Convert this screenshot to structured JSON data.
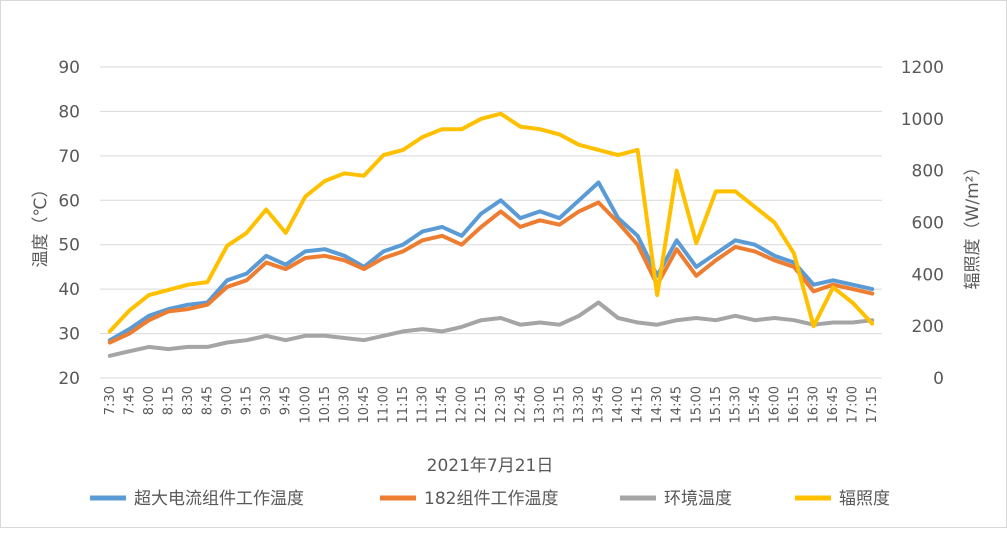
{
  "chart_data": {
    "type": "line",
    "xlabel": "2021年7月21日",
    "ylabel": "温度（℃）",
    "y2label": "辐照度（W/m²）",
    "ylim": [
      20,
      90
    ],
    "y2lim": [
      0,
      1200
    ],
    "yticks": [
      "20",
      "30",
      "40",
      "50",
      "60",
      "70",
      "80",
      "90"
    ],
    "y2ticks": [
      "0",
      "200",
      "400",
      "600",
      "800",
      "1000",
      "1200"
    ],
    "grid": true,
    "legend_position": "bottom",
    "categories": [
      "7:30",
      "7:45",
      "8:00",
      "8:15",
      "8:30",
      "8:45",
      "9:00",
      "9:15",
      "9:30",
      "9:45",
      "10:00",
      "10:15",
      "10:30",
      "10:45",
      "11:00",
      "11:15",
      "11:30",
      "11:45",
      "12:00",
      "12:15",
      "12:30",
      "12:45",
      "13:00",
      "13:15",
      "13:30",
      "13:45",
      "14:00",
      "14:15",
      "14:30",
      "14:45",
      "15:00",
      "15:15",
      "15:30",
      "15:45",
      "16:00",
      "16:15",
      "16:30",
      "16:45",
      "17:00",
      "17:15"
    ],
    "series": [
      {
        "name": "超大电流组件工作温度",
        "color": "#5B9BD5",
        "axis": "left",
        "values": [
          28.5,
          31,
          34,
          35.5,
          36.5,
          37,
          42,
          43.5,
          47.5,
          45.5,
          48.5,
          49,
          47.5,
          45,
          48.5,
          50,
          53,
          54,
          52,
          57,
          60,
          56,
          57.5,
          56,
          60,
          64,
          56,
          52,
          43,
          51,
          45,
          48,
          51,
          50,
          47.5,
          46,
          41,
          42,
          41,
          40
        ]
      },
      {
        "name": "182组件工作温度",
        "color": "#ED7D31",
        "axis": "left",
        "values": [
          28,
          30,
          33,
          35,
          35.5,
          36.5,
          40.5,
          42,
          46,
          44.5,
          47,
          47.5,
          46.5,
          44.5,
          47,
          48.5,
          51,
          52,
          50,
          54,
          57.5,
          54,
          55.5,
          54.5,
          57.5,
          59.5,
          55,
          50,
          41,
          49,
          43,
          46.5,
          49.5,
          48.5,
          46.5,
          45,
          39.5,
          41,
          40,
          39
        ]
      },
      {
        "name": "环境温度",
        "color": "#A5A5A5",
        "axis": "left",
        "values": [
          25,
          26,
          27,
          26.5,
          27,
          27,
          28,
          28.5,
          29.5,
          28.5,
          29.5,
          29.5,
          29,
          28.5,
          29.5,
          30.5,
          31,
          30.5,
          31.5,
          33,
          33.5,
          32,
          32.5,
          32,
          34,
          37,
          33.5,
          32.5,
          32,
          33,
          33.5,
          33,
          34,
          33,
          33.5,
          33,
          32,
          32.5,
          32.5,
          33
        ]
      },
      {
        "name": "辐照度",
        "color": "#FFC000",
        "axis": "right",
        "values": [
          180,
          260,
          320,
          340,
          360,
          370,
          510,
          560,
          650,
          560,
          700,
          760,
          790,
          780,
          860,
          880,
          930,
          960,
          960,
          1000,
          1020,
          970,
          960,
          940,
          900,
          880,
          860,
          880,
          320,
          800,
          520,
          720,
          720,
          660,
          600,
          480,
          200,
          350,
          290,
          210
        ]
      }
    ]
  },
  "legend": {
    "items": [
      {
        "label": "超大电流组件工作温度",
        "color": "#5B9BD5"
      },
      {
        "label": "182组件工作温度",
        "color": "#ED7D31"
      },
      {
        "label": "环境温度",
        "color": "#A5A5A5"
      },
      {
        "label": "辐照度",
        "color": "#FFC000"
      }
    ]
  }
}
